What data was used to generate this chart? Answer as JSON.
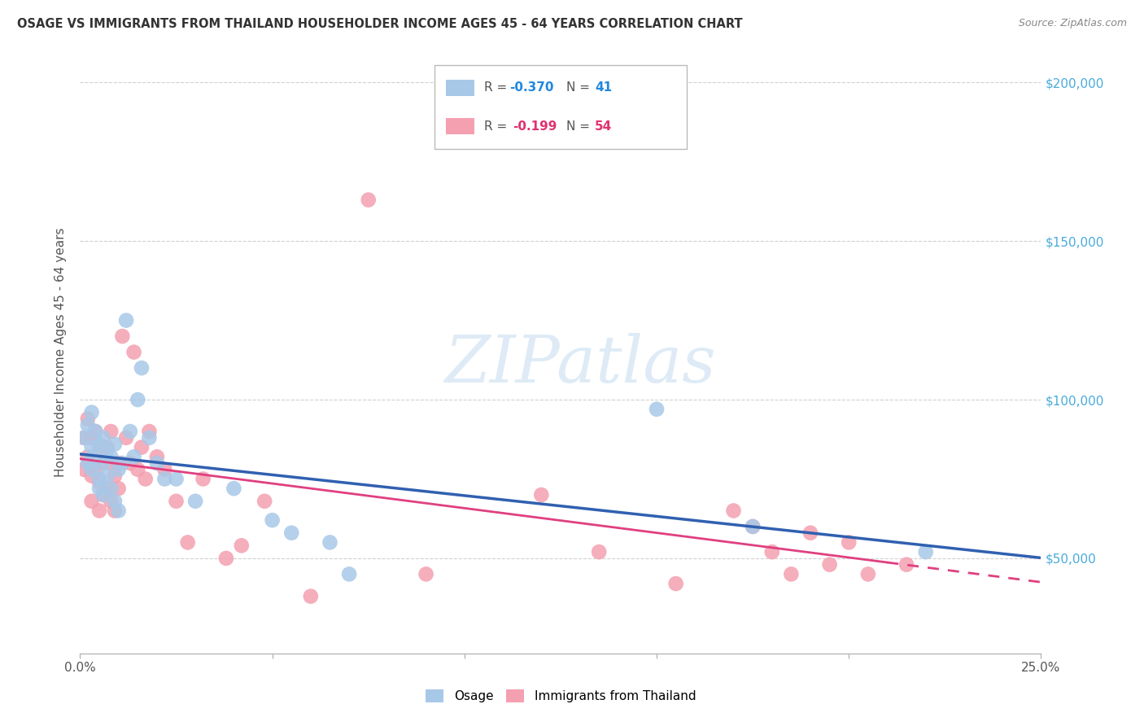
{
  "title": "OSAGE VS IMMIGRANTS FROM THAILAND HOUSEHOLDER INCOME AGES 45 - 64 YEARS CORRELATION CHART",
  "source": "Source: ZipAtlas.com",
  "ylabel": "Householder Income Ages 45 - 64 years",
  "xlim": [
    0.0,
    0.25
  ],
  "ylim": [
    20000,
    210000
  ],
  "yticks": [
    50000,
    100000,
    150000,
    200000
  ],
  "background_color": "#ffffff",
  "grid_color": "#d0d0d0",
  "blue_color": "#a8c8e8",
  "pink_color": "#f4a0b0",
  "blue_line_color": "#3060b0",
  "pink_line_color": "#e04080",
  "right_axis_color": "#4aabdb",
  "osage_x": [
    0.001,
    0.002,
    0.002,
    0.003,
    0.003,
    0.003,
    0.004,
    0.004,
    0.005,
    0.005,
    0.005,
    0.006,
    0.006,
    0.006,
    0.007,
    0.007,
    0.008,
    0.008,
    0.009,
    0.009,
    0.01,
    0.01,
    0.011,
    0.012,
    0.013,
    0.014,
    0.015,
    0.016,
    0.018,
    0.02,
    0.022,
    0.025,
    0.03,
    0.04,
    0.05,
    0.055,
    0.065,
    0.07,
    0.15,
    0.175,
    0.22
  ],
  "osage_y": [
    88000,
    92000,
    80000,
    96000,
    85000,
    78000,
    90000,
    82000,
    86000,
    75000,
    72000,
    88000,
    80000,
    70000,
    84000,
    76000,
    82000,
    72000,
    86000,
    68000,
    78000,
    65000,
    80000,
    125000,
    90000,
    82000,
    100000,
    110000,
    88000,
    80000,
    75000,
    75000,
    68000,
    72000,
    62000,
    58000,
    55000,
    45000,
    97000,
    60000,
    52000
  ],
  "thailand_x": [
    0.001,
    0.001,
    0.002,
    0.002,
    0.003,
    0.003,
    0.003,
    0.004,
    0.004,
    0.005,
    0.005,
    0.005,
    0.006,
    0.006,
    0.007,
    0.007,
    0.008,
    0.008,
    0.008,
    0.009,
    0.009,
    0.01,
    0.01,
    0.011,
    0.012,
    0.013,
    0.014,
    0.015,
    0.016,
    0.017,
    0.018,
    0.02,
    0.022,
    0.025,
    0.028,
    0.032,
    0.038,
    0.042,
    0.048,
    0.06,
    0.075,
    0.09,
    0.12,
    0.135,
    0.155,
    0.17,
    0.175,
    0.18,
    0.185,
    0.19,
    0.195,
    0.2,
    0.205,
    0.215
  ],
  "thailand_y": [
    88000,
    78000,
    94000,
    82000,
    88000,
    76000,
    68000,
    90000,
    78000,
    84000,
    74000,
    65000,
    80000,
    70000,
    85000,
    72000,
    80000,
    90000,
    68000,
    76000,
    65000,
    80000,
    72000,
    120000,
    88000,
    80000,
    115000,
    78000,
    85000,
    75000,
    90000,
    82000,
    78000,
    68000,
    55000,
    75000,
    50000,
    54000,
    68000,
    38000,
    163000,
    45000,
    70000,
    52000,
    42000,
    65000,
    60000,
    52000,
    45000,
    58000,
    48000,
    55000,
    45000,
    48000
  ]
}
